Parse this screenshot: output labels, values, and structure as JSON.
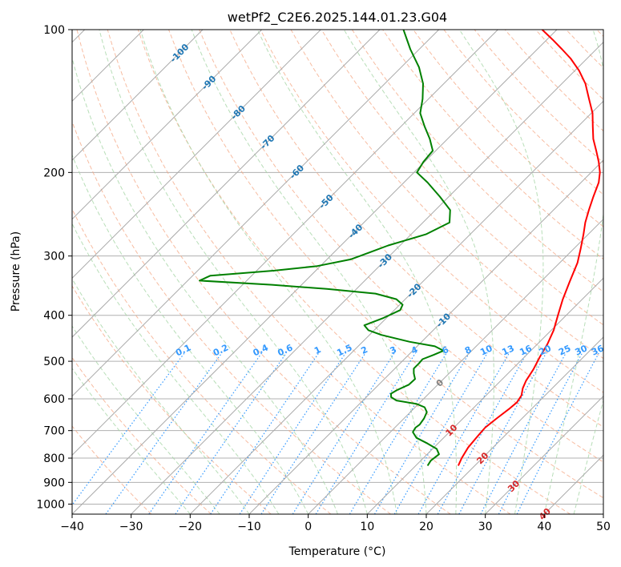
{
  "chart_data": {
    "type": "line",
    "title": "wetPf2_C2E6.2025.144.01.23.G04",
    "xlabel": "Temperature (°C)",
    "ylabel": "Pressure (hPa)",
    "xlim": [
      -40,
      50
    ],
    "ylim": [
      1050,
      100
    ],
    "y_scale": "log",
    "grid": true,
    "x_ticks": [
      -40,
      -30,
      -20,
      -10,
      0,
      10,
      20,
      30,
      40,
      50
    ],
    "y_ticks": [
      100,
      200,
      300,
      400,
      500,
      600,
      700,
      800,
      900,
      1000
    ],
    "skew_degrees": 45,
    "colors": {
      "temperature": "#ff0000",
      "dewpoint": "#008000",
      "isotherm": "#999999",
      "dry_adiabat": "#f4a582",
      "moist_adiabat": "#a6d6a6",
      "mixing_ratio": "#3399ff",
      "isotherm_label_neg": "#1f77b4",
      "isotherm_label_pos": "#d62728",
      "isotherm_label_zero": "#808080"
    },
    "series": [
      {
        "id": "temperature",
        "color": "#ff0000",
        "points": [
          [
            830,
            17.2
          ],
          [
            800,
            16.5
          ],
          [
            760,
            15.8
          ],
          [
            720,
            15.5
          ],
          [
            690,
            15.3
          ],
          [
            660,
            15.7
          ],
          [
            630,
            16.2
          ],
          [
            610,
            16.4
          ],
          [
            590,
            16.0
          ],
          [
            570,
            15.0
          ],
          [
            550,
            14.3
          ],
          [
            520,
            13.6
          ],
          [
            490,
            12.6
          ],
          [
            460,
            11.7
          ],
          [
            430,
            10.4
          ],
          [
            400,
            8.6
          ],
          [
            370,
            6.7
          ],
          [
            340,
            4.9
          ],
          [
            310,
            3.0
          ],
          [
            290,
            1.2
          ],
          [
            270,
            -0.8
          ],
          [
            255,
            -2.5
          ],
          [
            240,
            -4.0
          ],
          [
            225,
            -5.5
          ],
          [
            210,
            -7.0
          ],
          [
            200,
            -8.5
          ],
          [
            190,
            -10.5
          ],
          [
            180,
            -12.8
          ],
          [
            170,
            -15.3
          ],
          [
            160,
            -17.5
          ],
          [
            150,
            -19.8
          ],
          [
            140,
            -22.8
          ],
          [
            130,
            -26.0
          ],
          [
            122,
            -29.3
          ],
          [
            115,
            -32.8
          ],
          [
            110,
            -35.8
          ],
          [
            105,
            -39.0
          ],
          [
            100,
            -42.5
          ]
        ]
      },
      {
        "id": "dewpoint",
        "color": "#008000",
        "points": [
          [
            830,
            12.0
          ],
          [
            810,
            11.7
          ],
          [
            785,
            12.0
          ],
          [
            765,
            10.7
          ],
          [
            745,
            8.2
          ],
          [
            725,
            5.4
          ],
          [
            705,
            3.8
          ],
          [
            690,
            3.5
          ],
          [
            680,
            3.7
          ],
          [
            660,
            3.4
          ],
          [
            640,
            2.8
          ],
          [
            625,
            1.6
          ],
          [
            615,
            -0.3
          ],
          [
            605,
            -4.3
          ],
          [
            595,
            -5.8
          ],
          [
            585,
            -6.4
          ],
          [
            575,
            -6.0
          ],
          [
            560,
            -4.9
          ],
          [
            545,
            -4.8
          ],
          [
            530,
            -6.0
          ],
          [
            518,
            -6.8
          ],
          [
            505,
            -6.8
          ],
          [
            495,
            -6.9
          ],
          [
            485,
            -5.8
          ],
          [
            475,
            -4.8
          ],
          [
            465,
            -7.0
          ],
          [
            455,
            -12.0
          ],
          [
            440,
            -18.0
          ],
          [
            430,
            -21.0
          ],
          [
            420,
            -22.5
          ],
          [
            405,
            -20.5
          ],
          [
            390,
            -19.0
          ],
          [
            380,
            -19.5
          ],
          [
            370,
            -21.5
          ],
          [
            360,
            -26.0
          ],
          [
            352,
            -35.0
          ],
          [
            345,
            -45.0
          ],
          [
            338,
            -58.0
          ],
          [
            330,
            -57.0
          ],
          [
            322,
            -47.0
          ],
          [
            315,
            -40.5
          ],
          [
            305,
            -36.0
          ],
          [
            295,
            -34.0
          ],
          [
            285,
            -32.0
          ],
          [
            270,
            -27.5
          ],
          [
            255,
            -25.5
          ],
          [
            240,
            -27.5
          ],
          [
            225,
            -31.5
          ],
          [
            210,
            -36.0
          ],
          [
            200,
            -39.5
          ],
          [
            190,
            -40.2
          ],
          [
            180,
            -40.5
          ],
          [
            170,
            -43.0
          ],
          [
            160,
            -46.0
          ],
          [
            150,
            -49.0
          ],
          [
            140,
            -51.0
          ],
          [
            130,
            -53.5
          ],
          [
            120,
            -57.0
          ],
          [
            110,
            -61.5
          ],
          [
            100,
            -66.0
          ]
        ]
      }
    ],
    "isotherm_labels": [
      -100,
      -90,
      -80,
      -70,
      -60,
      -50,
      -40,
      -30,
      -20,
      -10,
      0,
      10,
      20,
      30,
      40
    ],
    "mixing_ratio_labels": [
      "0.1",
      "0.2",
      "0.4",
      "0.6",
      "1",
      "1.5",
      "2",
      "3",
      "4",
      "6",
      "8",
      "10",
      "13",
      "16",
      "20",
      "25",
      "30",
      "36"
    ]
  }
}
